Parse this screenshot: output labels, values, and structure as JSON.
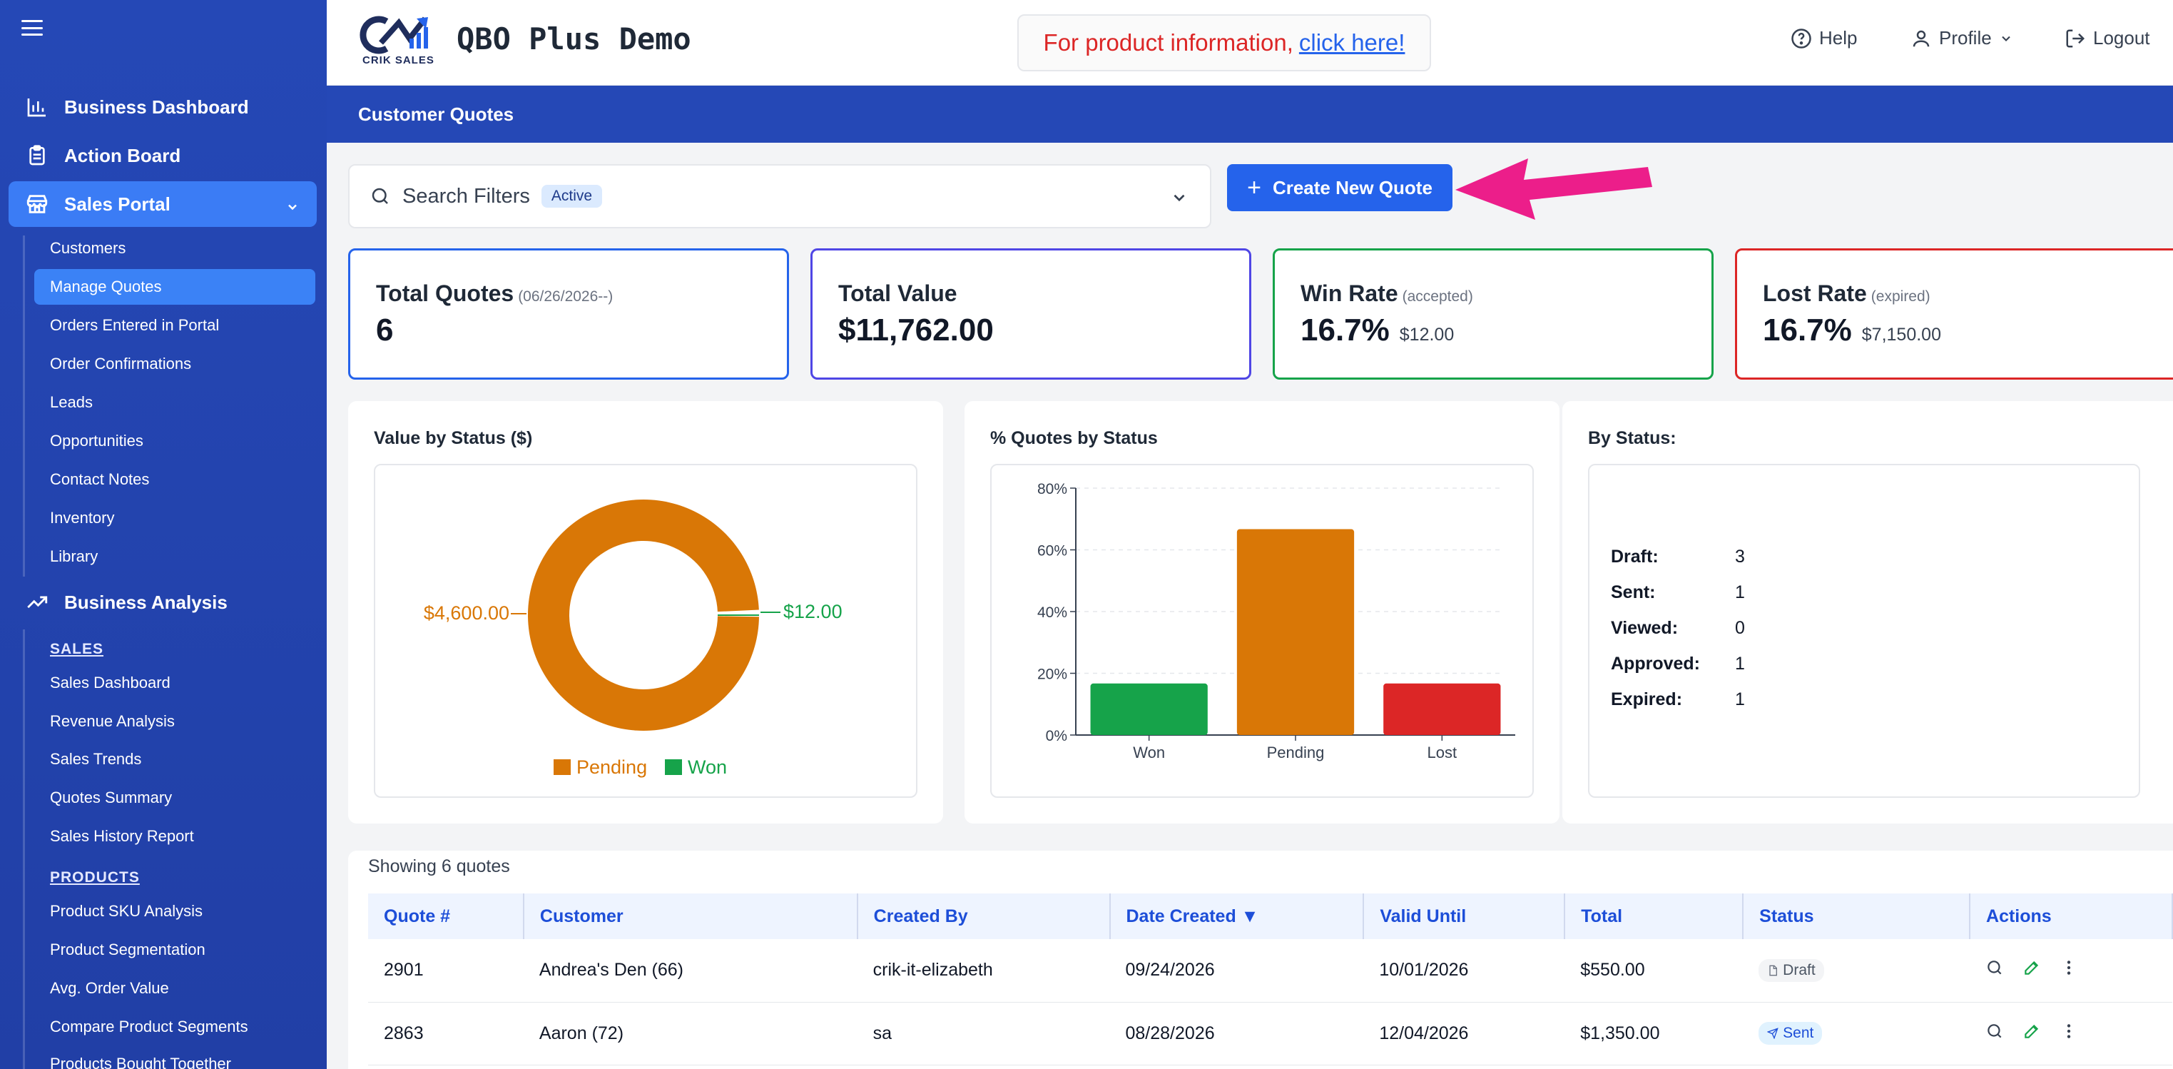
{
  "app": {
    "title": "QBO Plus Demo",
    "logo_text": "CRIK SALES"
  },
  "header": {
    "promo_text": "For product information,",
    "promo_link": "click here!",
    "help": "Help",
    "profile": "Profile",
    "logout": "Logout"
  },
  "sidebar": {
    "top": [
      {
        "label": "Business Dashboard",
        "icon": "bar-chart-icon"
      },
      {
        "label": "Action Board",
        "icon": "clipboard-icon"
      },
      {
        "label": "Sales Portal",
        "icon": "store-icon",
        "active": true
      }
    ],
    "sales_portal_items": [
      "Customers",
      "Manage Quotes",
      "Orders Entered in Portal",
      "Order Confirmations",
      "Leads",
      "Opportunities",
      "Contact Notes",
      "Inventory",
      "Library"
    ],
    "analysis": {
      "label": "Business Analysis",
      "icon": "trending-up-icon"
    },
    "sales_heading": "SALES",
    "sales_items": [
      "Sales Dashboard",
      "Revenue Analysis",
      "Sales Trends",
      "Quotes Summary",
      "Sales History Report"
    ],
    "products_heading": "PRODUCTS",
    "products_items": [
      "Product SKU Analysis",
      "Product Segmentation",
      "Avg. Order Value",
      "Compare Product Segments",
      "Products Bought Together"
    ]
  },
  "page": {
    "title": "Customer Quotes"
  },
  "search": {
    "label": "Search Filters",
    "badge": "Active"
  },
  "create_button": "Create New Quote",
  "kpis": {
    "total_quotes": {
      "title": "Total Quotes",
      "note": "(06/26/2026--)",
      "value": "6",
      "color": "#2563eb"
    },
    "total_value": {
      "title": "Total Value",
      "value": "$11,762.00",
      "color": "#4f46e5"
    },
    "win_rate": {
      "title": "Win Rate",
      "note": "(accepted)",
      "value": "16.7%",
      "sub": "$12.00",
      "color": "#16a34a"
    },
    "lost_rate": {
      "title": "Lost Rate",
      "note": "(expired)",
      "value": "16.7%",
      "sub": "$7,150.00",
      "color": "#dc2626"
    }
  },
  "donut": {
    "title": "Value by Status ($)",
    "label_pending": "$4,600.00",
    "label_won": "$12.00",
    "legend_pending": "Pending",
    "legend_won": "Won"
  },
  "bar": {
    "title": "% Quotes by Status"
  },
  "status_panel": {
    "title": "By Status:",
    "rows": [
      {
        "k": "Draft:",
        "v": "3"
      },
      {
        "k": "Sent:",
        "v": "1"
      },
      {
        "k": "Viewed:",
        "v": "0"
      },
      {
        "k": "Approved:",
        "v": "1"
      },
      {
        "k": "Expired:",
        "v": "1"
      }
    ]
  },
  "table": {
    "showing": "Showing 6 quotes",
    "headers": [
      "Quote #",
      "Customer",
      "Created By",
      "Date Created ▼",
      "Valid Until",
      "Total",
      "Status",
      "Actions"
    ],
    "rows": [
      {
        "quote": "2901",
        "customer": "Andrea's Den (66)",
        "created_by": "crik-it-elizabeth",
        "date_created": "09/24/2026",
        "valid_until": "10/01/2026",
        "total": "$550.00",
        "status": "Draft"
      },
      {
        "quote": "2863",
        "customer": "Aaron (72)",
        "created_by": "sa",
        "date_created": "08/28/2026",
        "valid_until": "12/04/2026",
        "total": "$1,350.00",
        "status": "Sent"
      }
    ]
  },
  "chart_data": [
    {
      "type": "pie",
      "title": "Value by Status ($)",
      "categories": [
        "Pending",
        "Won"
      ],
      "values": [
        4600,
        12
      ],
      "colors": [
        "#d97706",
        "#16a34a"
      ],
      "legend": "bottom"
    },
    {
      "type": "bar",
      "title": "% Quotes by Status",
      "categories": [
        "Won",
        "Pending",
        "Lost"
      ],
      "values": [
        16.7,
        66.7,
        16.7
      ],
      "colors": [
        "#16a34a",
        "#d97706",
        "#dc2626"
      ],
      "yticks": [
        "0%",
        "20%",
        "40%",
        "60%",
        "80%"
      ],
      "ylim": [
        0,
        80
      ],
      "grid": true
    }
  ]
}
